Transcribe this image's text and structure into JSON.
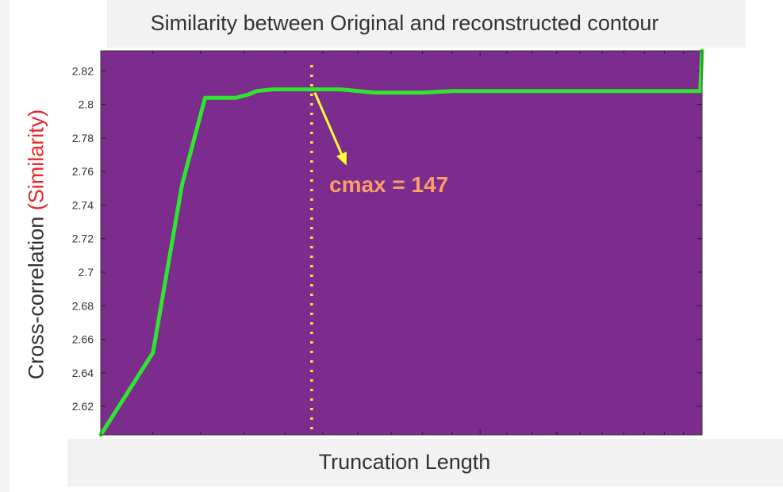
{
  "chart_data": {
    "type": "line",
    "title": "Similarity between Original and reconstructed contour",
    "xlabel": "Truncation Length",
    "ylabel": {
      "main": "Cross-correlation",
      "accent": "(Similarity)"
    },
    "x_scale": "log",
    "xlim": [
      100,
      300
    ],
    "ylim": [
      2.603,
      2.832
    ],
    "y_ticks": [
      "2.62",
      "2.64",
      "2.66",
      "2.68",
      "2.7",
      "2.72",
      "2.74",
      "2.76",
      "2.78",
      "2.8",
      "2.82"
    ],
    "y_tick_values": [
      2.62,
      2.64,
      2.66,
      2.68,
      2.7,
      2.72,
      2.74,
      2.76,
      2.78,
      2.8,
      2.82
    ],
    "grid": false,
    "series": [
      {
        "color": "#2ee62e",
        "x": [
          100,
          110,
          116,
          121,
          128,
          131,
          133,
          137,
          140,
          143,
          145,
          147,
          148,
          151,
          155,
          160,
          165,
          170,
          180,
          190,
          200,
          220,
          240,
          260,
          280,
          297,
          299,
          300
        ],
        "y": [
          2.603,
          2.652,
          2.752,
          2.804,
          2.804,
          2.806,
          2.808,
          2.809,
          2.809,
          2.809,
          2.809,
          2.809,
          2.809,
          2.809,
          2.809,
          2.808,
          2.807,
          2.807,
          2.807,
          2.808,
          2.808,
          2.808,
          2.808,
          2.808,
          2.808,
          2.808,
          2.808,
          2.832
        ]
      }
    ],
    "vline": {
      "x": 147,
      "color": "#ffeb3b",
      "style": "dotted"
    },
    "annotation": {
      "text": "cmax = 147",
      "color": "#fa9e6a",
      "arrow_color": "#ffff33",
      "point_x": 147,
      "point_y": 2.809
    },
    "colors": {
      "plot_background": "#7b2c8c",
      "axis": "#3a3a3a",
      "tick_text": "#333333"
    }
  }
}
